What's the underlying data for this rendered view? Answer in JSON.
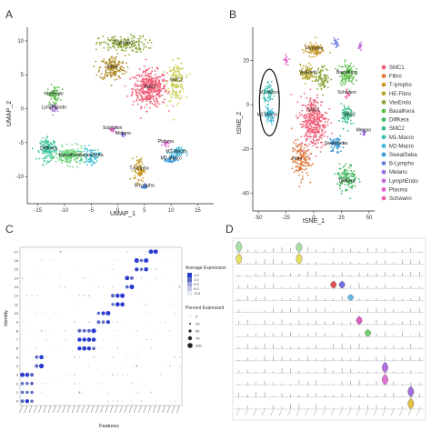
{
  "panels": {
    "a": {
      "letter": "A"
    },
    "b": {
      "letter": "B"
    },
    "c": {
      "letter": "C"
    },
    "d": {
      "letter": "D"
    }
  },
  "chart_data": [
    {
      "panel": "A",
      "type": "scatter",
      "xlabel": "UMAP_1",
      "ylabel": "UMAP_2",
      "x_ticks": [
        -15,
        -10,
        -5,
        0,
        5,
        10,
        15
      ],
      "y_ticks": [
        -10,
        -5,
        0,
        5,
        10
      ],
      "xlim": [
        -17,
        18
      ],
      "ylim": [
        -14,
        12
      ],
      "clusters": [
        {
          "label": "SMC1",
          "x": 6,
          "y": 3,
          "sx": 3.2,
          "sy": 2.6,
          "n": 420,
          "color": "#f06078"
        },
        {
          "label": "SMC2",
          "x": 11,
          "y": 4,
          "sx": 1.6,
          "sy": 2.8,
          "n": 150,
          "color": "#c9cc4c"
        },
        {
          "label": "Fibro",
          "x": -1,
          "y": 6,
          "sx": 2.4,
          "sy": 1.8,
          "n": 180,
          "color": "#b39030"
        },
        {
          "label": "T-lympho",
          "x": 1,
          "y": 9.5,
          "sx": 4.5,
          "sy": 1.2,
          "n": 180,
          "color": "#8aa83a"
        },
        {
          "label": "VasEndo",
          "x": -12,
          "y": 2,
          "sx": 1.2,
          "sy": 1.4,
          "n": 70,
          "color": "#5cbf4a"
        },
        {
          "label": "LymphEndo",
          "x": -12,
          "y": 0,
          "sx": 0.8,
          "sy": 0.6,
          "n": 25,
          "color": "#a57bd6"
        },
        {
          "label": "DiffKera",
          "x": -13,
          "y": -6,
          "sx": 1.6,
          "sy": 1.6,
          "n": 150,
          "color": "#40c8a0"
        },
        {
          "label": "BasalKera",
          "x": -9,
          "y": -7,
          "sx": 2.6,
          "sy": 1.3,
          "n": 190,
          "color": "#6fd87c"
        },
        {
          "label": "SweatSeba",
          "x": -5,
          "y": -7,
          "sx": 1.6,
          "sy": 1.2,
          "n": 70,
          "color": "#3dbfd0"
        },
        {
          "label": "Schwann",
          "x": -1,
          "y": -3,
          "sx": 0.7,
          "sy": 0.5,
          "n": 20,
          "color": "#e05cc8"
        },
        {
          "label": "Melano",
          "x": 1,
          "y": -3.8,
          "sx": 0.5,
          "sy": 0.4,
          "n": 12,
          "color": "#7a6ee0"
        },
        {
          "label": "Plasma",
          "x": 9,
          "y": -5,
          "sx": 0.6,
          "sy": 0.5,
          "n": 15,
          "color": "#d86ad2"
        },
        {
          "label": "M1-Macro",
          "x": 11,
          "y": -6.5,
          "sx": 1.4,
          "sy": 0.8,
          "n": 60,
          "color": "#4ab6d6"
        },
        {
          "label": "M2-Macro",
          "x": 10,
          "y": -7.5,
          "sx": 1.0,
          "sy": 0.6,
          "n": 40,
          "color": "#3a9ad8"
        },
        {
          "label": "T-lympho",
          "x": 4,
          "y": -9,
          "sx": 1.0,
          "sy": 1.8,
          "n": 80,
          "color": "#c89a2a"
        },
        {
          "label": "B-lympho",
          "x": 5,
          "y": -11.5,
          "sx": 0.5,
          "sy": 0.4,
          "n": 15,
          "color": "#4a7ee0"
        }
      ]
    },
    {
      "panel": "B",
      "type": "scatter",
      "xlabel": "tSNE_1",
      "ylabel": "tSNE_2",
      "x_ticks": [
        -50,
        -25,
        0,
        25,
        50
      ],
      "y_ticks": [
        -40,
        -20,
        0,
        20
      ],
      "xlim": [
        -55,
        55
      ],
      "ylim": [
        -48,
        35
      ],
      "labels": [
        {
          "text": "T-lympho",
          "x": 0,
          "y": 25
        },
        {
          "text": "VasEndo",
          "x": -5,
          "y": 14
        },
        {
          "text": "BasalKera",
          "x": 30,
          "y": 14
        },
        {
          "text": "M1-Macro",
          "x": -40,
          "y": 5
        },
        {
          "text": "Schwann",
          "x": 30,
          "y": 5
        },
        {
          "text": "SMC1",
          "x": 0,
          "y": -3
        },
        {
          "text": "M2-Macro",
          "x": -42,
          "y": -5
        },
        {
          "text": "SMC2",
          "x": 32,
          "y": -5
        },
        {
          "text": "Melano",
          "x": 45,
          "y": -12
        },
        {
          "text": "SweatSeba",
          "x": 20,
          "y": -18
        },
        {
          "text": "Fibro",
          "x": -15,
          "y": -25
        },
        {
          "text": "DiffKera",
          "x": 30,
          "y": -35
        }
      ],
      "legend_position": "right",
      "legend": [
        {
          "label": "SMC1",
          "color": "#f06078"
        },
        {
          "label": "Fibro",
          "color": "#dd7a3a"
        },
        {
          "label": "T-lympho",
          "color": "#c89a2a"
        },
        {
          "label": "HE-Fibro",
          "color": "#b6a830"
        },
        {
          "label": "VasEndo",
          "color": "#8aa83a"
        },
        {
          "label": "BasalKera",
          "color": "#5cbf4a"
        },
        {
          "label": "DiffKera",
          "color": "#40b860"
        },
        {
          "label": "SMC2",
          "color": "#3ac08a"
        },
        {
          "label": "M1-Macro",
          "color": "#3ac0b0"
        },
        {
          "label": "M2-Macro",
          "color": "#3ab6d6"
        },
        {
          "label": "SweatSeba",
          "color": "#3a9ad8"
        },
        {
          "label": "B-Lympho",
          "color": "#6a7ee0"
        },
        {
          "label": "Melano",
          "color": "#9a6ee0"
        },
        {
          "label": "LymphEndo",
          "color": "#c06ad8"
        },
        {
          "label": "Plasma",
          "color": "#e05cc8"
        },
        {
          "label": "Schwann",
          "color": "#f060a8"
        }
      ],
      "clusters": [
        {
          "x": 0,
          "y": -8,
          "sx": 12,
          "sy": 12,
          "n": 380,
          "color": "#f06078"
        },
        {
          "x": -12,
          "y": -25,
          "sx": 8,
          "sy": 8,
          "n": 140,
          "color": "#dd7a3a"
        },
        {
          "x": 0,
          "y": 25,
          "sx": 9,
          "sy": 3,
          "n": 100,
          "color": "#c89a2a"
        },
        {
          "x": -6,
          "y": 14,
          "sx": 6,
          "sy": 4,
          "n": 90,
          "color": "#b6a830"
        },
        {
          "x": 8,
          "y": 12,
          "sx": 6,
          "sy": 5,
          "n": 90,
          "color": "#8aa83a"
        },
        {
          "x": 30,
          "y": 14,
          "sx": 7,
          "sy": 5,
          "n": 110,
          "color": "#5cbf4a"
        },
        {
          "x": 30,
          "y": -33,
          "sx": 9,
          "sy": 6,
          "n": 120,
          "color": "#40b860"
        },
        {
          "x": 30,
          "y": -5,
          "sx": 5,
          "sy": 5,
          "n": 80,
          "color": "#3ac08a"
        },
        {
          "x": -40,
          "y": 5,
          "sx": 5,
          "sy": 4,
          "n": 60,
          "color": "#3ac0b0"
        },
        {
          "x": -40,
          "y": -5,
          "sx": 5,
          "sy": 4,
          "n": 60,
          "color": "#3ab6d6"
        },
        {
          "x": 20,
          "y": -18,
          "sx": 6,
          "sy": 4,
          "n": 60,
          "color": "#3a9ad8"
        },
        {
          "x": 20,
          "y": 28,
          "sx": 3,
          "sy": 2,
          "n": 20,
          "color": "#6a7ee0"
        },
        {
          "x": 45,
          "y": -12,
          "sx": 2,
          "sy": 2,
          "n": 15,
          "color": "#9a6ee0"
        },
        {
          "x": 42,
          "y": 27,
          "sx": 2,
          "sy": 2,
          "n": 15,
          "color": "#c06ad8"
        },
        {
          "x": -25,
          "y": 20,
          "sx": 2,
          "sy": 2,
          "n": 15,
          "color": "#e05cc8"
        },
        {
          "x": 30,
          "y": 5,
          "sx": 2,
          "sy": 2,
          "n": 15,
          "color": "#f060a8"
        }
      ],
      "annotation": {
        "shape": "ellipse",
        "cx": -40,
        "cy": 1,
        "rx": 9,
        "ry": 15
      }
    },
    {
      "panel": "C",
      "type": "dot",
      "xlabel": "Features",
      "ylabel": "Identity",
      "identities": [
        "0",
        "1",
        "2",
        "3",
        "4",
        "5",
        "6",
        "7",
        "8",
        "9",
        "10",
        "11",
        "12",
        "13",
        "14",
        "15",
        "16",
        "17"
      ],
      "n_features": 34,
      "legend_position": "right",
      "legend_color_title": "Average Expression",
      "legend_color_ticks": [
        "1.5",
        "1.0",
        "0.5",
        "0.0",
        "-0.5"
      ],
      "legend_size_title": "Percent Expressed",
      "legend_size_ticks": [
        "0",
        "25",
        "50",
        "75",
        "100"
      ],
      "diagonal_blocks": [
        {
          "rows": [
            0,
            1,
            2,
            3
          ],
          "cols": [
            0,
            1,
            2
          ]
        },
        {
          "rows": [
            4,
            5
          ],
          "cols": [
            3,
            4
          ]
        },
        {
          "rows": [
            6,
            7,
            8
          ],
          "cols": [
            12,
            13,
            14,
            15
          ]
        },
        {
          "rows": [
            9,
            10
          ],
          "cols": [
            16,
            17,
            18
          ]
        },
        {
          "rows": [
            11,
            12
          ],
          "cols": [
            19,
            20,
            21
          ]
        },
        {
          "rows": [
            13,
            14
          ],
          "cols": [
            22,
            23
          ]
        },
        {
          "rows": [
            15,
            16
          ],
          "cols": [
            24,
            25,
            26
          ]
        },
        {
          "rows": [
            17
          ],
          "cols": [
            27,
            28
          ]
        }
      ]
    },
    {
      "panel": "D",
      "type": "violin",
      "n_rows": 14,
      "n_columns": 22,
      "highlights": [
        {
          "row": 0,
          "col": 0,
          "color": "#a8e0a8",
          "height": 0.9
        },
        {
          "row": 0,
          "col": 7,
          "color": "#a8e0a8",
          "height": 0.8
        },
        {
          "row": 1,
          "col": 0,
          "color": "#e8e060",
          "height": 0.9
        },
        {
          "row": 1,
          "col": 7,
          "color": "#e8e060",
          "height": 0.9
        },
        {
          "row": 3,
          "col": 11,
          "color": "#e05050",
          "height": 0.6
        },
        {
          "row": 3,
          "col": 12,
          "color": "#7070e0",
          "height": 0.6
        },
        {
          "row": 4,
          "col": 13,
          "color": "#60c0e0",
          "height": 0.5
        },
        {
          "row": 6,
          "col": 14,
          "color": "#e060c0",
          "height": 0.7
        },
        {
          "row": 7,
          "col": 15,
          "color": "#70d070",
          "height": 0.6
        },
        {
          "row": 10,
          "col": 17,
          "color": "#b070e0",
          "height": 0.9
        },
        {
          "row": 11,
          "col": 17,
          "color": "#e070d0",
          "height": 0.9
        },
        {
          "row": 12,
          "col": 20,
          "color": "#a070e0",
          "height": 0.9
        },
        {
          "row": 13,
          "col": 20,
          "color": "#e0c040",
          "height": 0.9
        }
      ]
    }
  ]
}
